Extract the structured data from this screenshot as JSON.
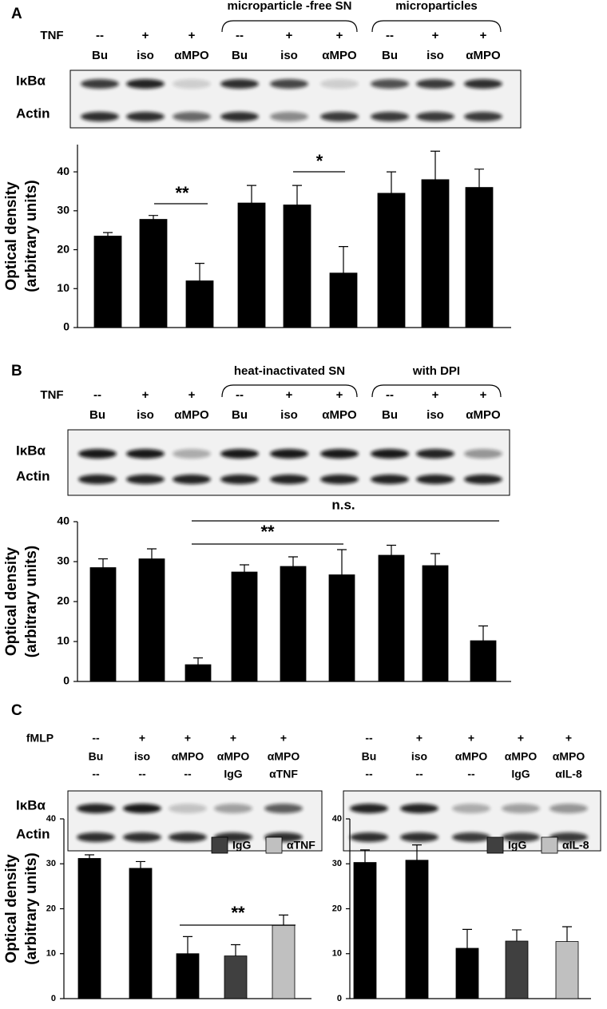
{
  "blots": [
    {
      "panel": "A",
      "treatment": "TNF",
      "groups": [
        "microparticle -free SN",
        "microparticles"
      ],
      "lanes": [
        [
          "--",
          "+",
          "+",
          "--",
          "+",
          "+",
          "--",
          "+",
          "+"
        ],
        [
          "Bu",
          "iso",
          "αMPO",
          "Bu",
          "iso",
          "αMPO",
          "Bu",
          "iso",
          "αMPO"
        ]
      ],
      "rows": [
        "IκBα",
        "Actin"
      ]
    },
    {
      "panel": "B",
      "treatment": "TNF",
      "groups": [
        "heat-inactivated SN",
        "with DPI"
      ],
      "lanes": [
        [
          "--",
          "+",
          "+",
          "--",
          "+",
          "+",
          "--",
          "+",
          "+"
        ],
        [
          "Bu",
          "iso",
          "αMPO",
          "Bu",
          "iso",
          "αMPO",
          "Bu",
          "iso",
          "αMPO"
        ]
      ],
      "rows": [
        "IκBα",
        "Actin"
      ]
    },
    {
      "panel": "C",
      "treatment": "fMLP",
      "lanes": [
        [
          "--",
          "+",
          "+",
          "+",
          "+"
        ],
        [
          "Bu",
          "iso",
          "αMPO",
          "αMPO",
          "αMPO"
        ],
        [
          "--",
          "--",
          "--",
          "IgG",
          "αTNF"
        ]
      ],
      "rows": [
        "IκBα",
        "Actin"
      ]
    },
    {
      "lanes": [
        [
          "--",
          "+",
          "+",
          "+",
          "+"
        ],
        [
          "Bu",
          "iso",
          "αMPO",
          "αMPO",
          "αMPO"
        ],
        [
          "--",
          "--",
          "--",
          "IgG",
          "αIL-8"
        ]
      ]
    }
  ],
  "chart_data": [
    {
      "type": "bar",
      "ylabel": [
        "Optical density",
        "(arbitrary units)"
      ],
      "categories": [
        null,
        null,
        null,
        null,
        null,
        null,
        null,
        null,
        null
      ],
      "values": [
        23.5,
        27.8,
        12,
        32,
        31.5,
        14,
        34.5,
        38,
        36
      ],
      "errors": [
        0.9,
        1,
        4.5,
        4.5,
        5,
        6.8,
        5.5,
        7.3,
        4.7
      ],
      "colors": [
        "#000000",
        "#000000",
        "#000000",
        "#000000",
        "#000000",
        "#000000",
        "#000000",
        "#000000",
        "#000000"
      ],
      "ylim": [
        0,
        47
      ],
      "yticks": [
        0,
        10,
        20,
        30,
        40
      ],
      "annotations": [
        "**",
        "*"
      ]
    },
    {
      "type": "bar",
      "ylabel": [
        "Optical density",
        "(arbitrary units)"
      ],
      "categories": [
        null,
        null,
        null,
        null,
        null,
        null,
        null,
        null,
        null
      ],
      "values": [
        28.5,
        30.7,
        4.2,
        27.4,
        28.8,
        26.7,
        31.6,
        29,
        10.2
      ],
      "errors": [
        2.2,
        2.5,
        1.7,
        1.8,
        2.4,
        6.3,
        2.5,
        3,
        3.7
      ],
      "colors": [
        "#000000",
        "#000000",
        "#000000",
        "#000000",
        "#000000",
        "#000000",
        "#000000",
        "#000000",
        "#000000"
      ],
      "ylim": [
        0,
        40
      ],
      "yticks": [
        0,
        10,
        20,
        30,
        40
      ],
      "annotations": [
        "**",
        "n.s."
      ]
    },
    {
      "type": "bar",
      "ylabel": [
        "Optical density",
        "(arbitrary units)"
      ],
      "categories": [
        null,
        null,
        null,
        null,
        null
      ],
      "values": [
        31.2,
        29,
        10,
        9.5,
        16.3
      ],
      "errors": [
        0.8,
        1.5,
        3.8,
        2.5,
        2.3
      ],
      "colors": [
        "#000000",
        "#000000",
        "#000000",
        "#404040",
        "#c0c0c0"
      ],
      "legend": [
        {
          "name": "IgG",
          "color": "#404040"
        },
        {
          "name": "αTNF",
          "color": "#c0c0c0"
        }
      ],
      "ylim": [
        0,
        40
      ],
      "yticks": [
        0,
        10,
        20,
        30,
        40
      ],
      "annotations": [
        "**"
      ]
    },
    {
      "type": "bar",
      "categories": [
        null,
        null,
        null,
        null,
        null
      ],
      "values": [
        30.3,
        30.8,
        11.2,
        12.8,
        12.7
      ],
      "errors": [
        2.8,
        3.4,
        4.2,
        2.5,
        3.3
      ],
      "colors": [
        "#000000",
        "#000000",
        "#000000",
        "#404040",
        "#c0c0c0"
      ],
      "legend": [
        {
          "name": "IgG",
          "color": "#404040"
        },
        {
          "name": "αIL-8",
          "color": "#c0c0c0"
        }
      ],
      "ylim": [
        0,
        40
      ],
      "yticks": [
        0,
        10,
        20,
        30,
        40
      ]
    }
  ]
}
